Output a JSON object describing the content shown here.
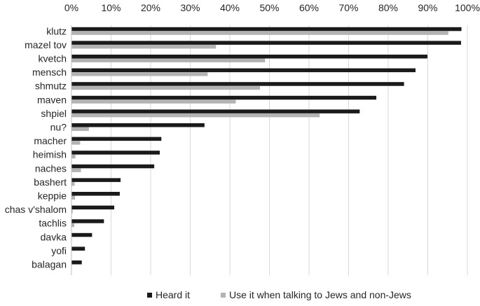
{
  "chart_data": {
    "type": "bar",
    "orientation": "horizontal",
    "title": "",
    "xlabel": "",
    "ylabel": "",
    "xlim": [
      0,
      100
    ],
    "x_unit": "%",
    "x_ticks": [
      "0%",
      "10%",
      "20%",
      "30%",
      "40%",
      "50%",
      "60%",
      "70%",
      "80%",
      "90%",
      "100%"
    ],
    "grid": "vertical",
    "legend_position": "bottom",
    "categories": [
      "klutz",
      "mazel tov",
      "kvetch",
      "mensch",
      "shmutz",
      "maven",
      "shpiel",
      "nu?",
      "macher",
      "heimish",
      "naches",
      "bashert",
      "keppie",
      "chas v'shalom",
      "tachlis",
      "davka",
      "yofi",
      "balagan"
    ],
    "series": [
      {
        "name": "Heard it",
        "color": "#1a1a1a",
        "values": [
          98.5,
          98.4,
          89.9,
          86.9,
          84.0,
          77.0,
          72.8,
          33.6,
          22.7,
          22.3,
          20.9,
          12.4,
          12.2,
          10.8,
          8.2,
          5.2,
          3.4,
          2.6
        ]
      },
      {
        "name": "Use it when talking to Jews and non-Jews",
        "color": "#b3b3b3",
        "values": [
          95.2,
          36.5,
          48.9,
          34.4,
          47.6,
          41.5,
          62.7,
          4.4,
          2.2,
          1.0,
          2.4,
          0.8,
          0.9,
          0.3,
          0.7,
          0.1,
          0.1,
          0.1
        ]
      }
    ]
  }
}
